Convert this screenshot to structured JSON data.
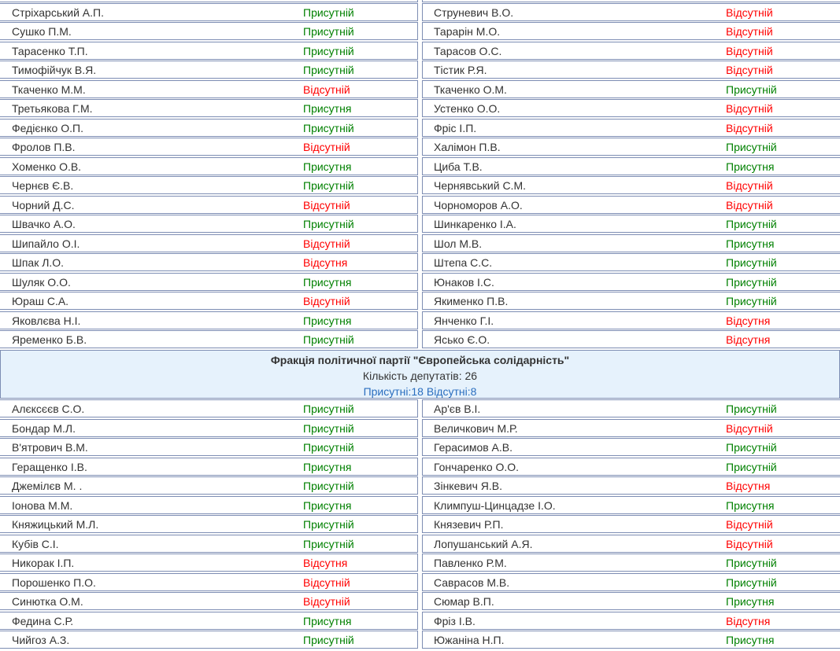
{
  "colors": {
    "present": "#008000",
    "absent": "#ff0000",
    "stats": "#2a6ebf",
    "header_bg": "#e6f2fc",
    "border": "#7d8db3"
  },
  "sections": [
    {
      "rows": [
        {
          "left": {
            "name": "",
            "status": "",
            "present": true
          },
          "right": {
            "name": "",
            "status": "",
            "present": true
          }
        },
        {
          "left": {
            "name": "Стріхарський А.П.",
            "status": "Присутній",
            "present": true
          },
          "right": {
            "name": "Струневич В.О.",
            "status": "Відсутній",
            "present": false
          }
        },
        {
          "left": {
            "name": "Сушко П.М.",
            "status": "Присутній",
            "present": true
          },
          "right": {
            "name": "Тарарін М.О.",
            "status": "Відсутній",
            "present": false
          }
        },
        {
          "left": {
            "name": "Тарасенко Т.П.",
            "status": "Присутній",
            "present": true
          },
          "right": {
            "name": "Тарасов О.С.",
            "status": "Відсутній",
            "present": false
          }
        },
        {
          "left": {
            "name": "Тимофійчук В.Я.",
            "status": "Присутній",
            "present": true
          },
          "right": {
            "name": "Тістик Р.Я.",
            "status": "Відсутній",
            "present": false
          }
        },
        {
          "left": {
            "name": "Ткаченко М.М.",
            "status": "Відсутній",
            "present": false
          },
          "right": {
            "name": "Ткаченко О.М.",
            "status": "Присутній",
            "present": true
          }
        },
        {
          "left": {
            "name": "Третьякова Г.М.",
            "status": "Присутня",
            "present": true
          },
          "right": {
            "name": "Устенко О.О.",
            "status": "Відсутній",
            "present": false
          }
        },
        {
          "left": {
            "name": "Федієнко О.П.",
            "status": "Присутній",
            "present": true
          },
          "right": {
            "name": "Фріс І.П.",
            "status": "Відсутній",
            "present": false
          }
        },
        {
          "left": {
            "name": "Фролов П.В.",
            "status": "Відсутній",
            "present": false
          },
          "right": {
            "name": "Халімон П.В.",
            "status": "Присутній",
            "present": true
          }
        },
        {
          "left": {
            "name": "Хоменко О.В.",
            "status": "Присутня",
            "present": true
          },
          "right": {
            "name": "Циба Т.В.",
            "status": "Присутня",
            "present": true
          }
        },
        {
          "left": {
            "name": "Чернєв Є.В.",
            "status": "Присутній",
            "present": true
          },
          "right": {
            "name": "Чернявський С.М.",
            "status": "Відсутній",
            "present": false
          }
        },
        {
          "left": {
            "name": "Чорний Д.С.",
            "status": "Відсутній",
            "present": false
          },
          "right": {
            "name": "Чорноморов А.О.",
            "status": "Відсутній",
            "present": false
          }
        },
        {
          "left": {
            "name": "Швачко А.О.",
            "status": "Присутній",
            "present": true
          },
          "right": {
            "name": "Шинкаренко І.А.",
            "status": "Присутній",
            "present": true
          }
        },
        {
          "left": {
            "name": "Шипайло О.І.",
            "status": "Відсутній",
            "present": false
          },
          "right": {
            "name": "Шол М.В.",
            "status": "Присутня",
            "present": true
          }
        },
        {
          "left": {
            "name": "Шпак Л.О.",
            "status": "Відсутня",
            "present": false
          },
          "right": {
            "name": "Штепа С.С.",
            "status": "Присутній",
            "present": true
          }
        },
        {
          "left": {
            "name": "Шуляк О.О.",
            "status": "Присутня",
            "present": true
          },
          "right": {
            "name": "Юнаков І.С.",
            "status": "Присутній",
            "present": true
          }
        },
        {
          "left": {
            "name": "Юраш С.А.",
            "status": "Відсутній",
            "present": false
          },
          "right": {
            "name": "Якименко П.В.",
            "status": "Присутній",
            "present": true
          }
        },
        {
          "left": {
            "name": "Яковлєва Н.І.",
            "status": "Присутня",
            "present": true
          },
          "right": {
            "name": "Янченко Г.І.",
            "status": "Відсутня",
            "present": false
          }
        },
        {
          "left": {
            "name": "Яременко Б.В.",
            "status": "Присутній",
            "present": true
          },
          "right": {
            "name": "Ясько Є.О.",
            "status": "Відсутня",
            "present": false
          }
        }
      ]
    },
    {
      "faction": {
        "title": "Фракція політичної партії \"Європейська солідарність\"",
        "count": "Кількість депутатів: 26",
        "stats": "Присутні:18 Відсутні:8"
      },
      "rows": [
        {
          "left": {
            "name": "Алєксєєв С.О.",
            "status": "Присутній",
            "present": true
          },
          "right": {
            "name": "Ар'єв В.І.",
            "status": "Присутній",
            "present": true
          }
        },
        {
          "left": {
            "name": "Бондар М.Л.",
            "status": "Присутній",
            "present": true
          },
          "right": {
            "name": "Величкович М.Р.",
            "status": "Відсутній",
            "present": false
          }
        },
        {
          "left": {
            "name": "В'ятрович В.М.",
            "status": "Присутній",
            "present": true
          },
          "right": {
            "name": "Герасимов А.В.",
            "status": "Присутній",
            "present": true
          }
        },
        {
          "left": {
            "name": "Геращенко І.В.",
            "status": "Присутня",
            "present": true
          },
          "right": {
            "name": "Гончаренко О.О.",
            "status": "Присутній",
            "present": true
          }
        },
        {
          "left": {
            "name": "Джемілєв М. .",
            "status": "Присутній",
            "present": true
          },
          "right": {
            "name": "Зінкевич Я.В.",
            "status": "Відсутня",
            "present": false
          }
        },
        {
          "left": {
            "name": "Іонова М.М.",
            "status": "Присутня",
            "present": true
          },
          "right": {
            "name": "Климпуш-Цинцадзе І.О.",
            "status": "Присутня",
            "present": true
          }
        },
        {
          "left": {
            "name": "Княжицький М.Л.",
            "status": "Присутній",
            "present": true
          },
          "right": {
            "name": "Князевич Р.П.",
            "status": "Відсутній",
            "present": false
          }
        },
        {
          "left": {
            "name": "Кубів С.І.",
            "status": "Присутній",
            "present": true
          },
          "right": {
            "name": "Лопушанський А.Я.",
            "status": "Відсутній",
            "present": false
          }
        },
        {
          "left": {
            "name": "Никорак І.П.",
            "status": "Відсутня",
            "present": false
          },
          "right": {
            "name": "Павленко Р.М.",
            "status": "Присутній",
            "present": true
          }
        },
        {
          "left": {
            "name": "Порошенко П.О.",
            "status": "Відсутній",
            "present": false
          },
          "right": {
            "name": "Саврасов М.В.",
            "status": "Присутній",
            "present": true
          }
        },
        {
          "left": {
            "name": "Синютка О.М.",
            "status": "Відсутній",
            "present": false
          },
          "right": {
            "name": "Сюмар В.П.",
            "status": "Присутня",
            "present": true
          }
        },
        {
          "left": {
            "name": "Федина С.Р.",
            "status": "Присутня",
            "present": true
          },
          "right": {
            "name": "Фріз І.В.",
            "status": "Відсутня",
            "present": false
          }
        },
        {
          "left": {
            "name": "Чийгоз А.З.",
            "status": "Присутній",
            "present": true
          },
          "right": {
            "name": "Южаніна Н.П.",
            "status": "Присутня",
            "present": true
          }
        }
      ]
    }
  ]
}
